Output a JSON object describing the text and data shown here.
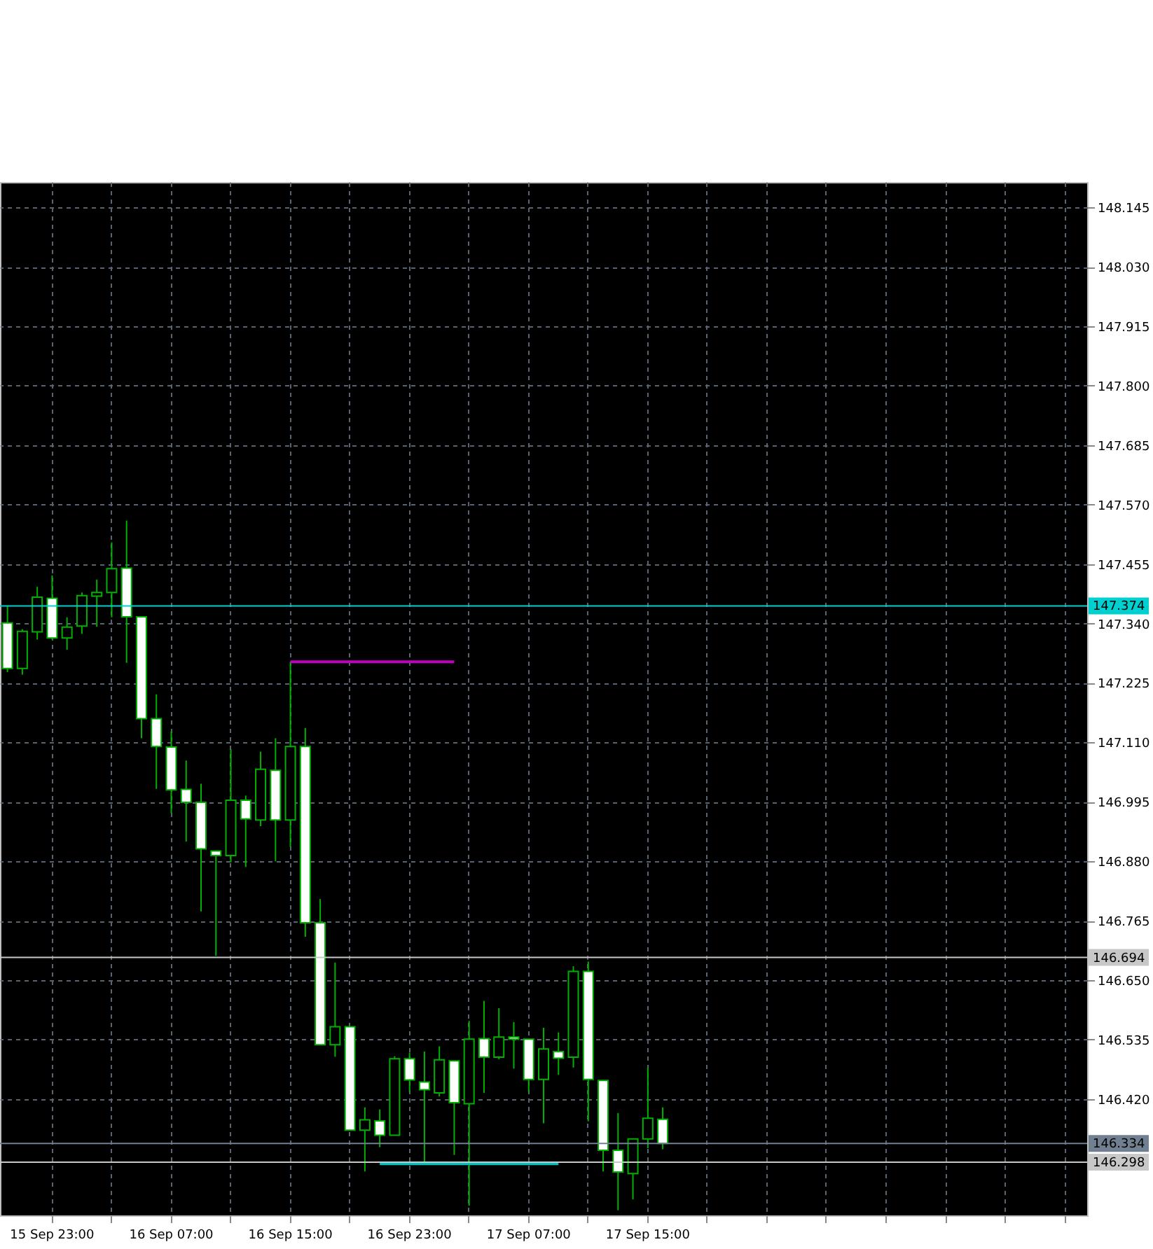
{
  "chart_data": {
    "type": "candlestick",
    "categories": [
      null,
      null,
      null,
      "15 Sep 23:00",
      null,
      null,
      null,
      null,
      null,
      null,
      null,
      "16 Sep 07:00",
      null,
      null,
      null,
      null,
      null,
      null,
      null,
      "16 Sep 15:00",
      null,
      null,
      null,
      null,
      null,
      null,
      null,
      "16 Sep 23:00",
      null,
      null,
      null,
      null,
      null,
      null,
      null,
      "17 Sep 07:00",
      null,
      null,
      null,
      null,
      null,
      null,
      null,
      "17 Sep 15:00",
      null,
      null,
      null,
      null,
      null,
      null,
      null,
      null,
      null,
      null,
      null,
      null,
      null,
      null,
      null,
      null,
      null,
      null,
      null,
      null,
      null,
      null,
      null,
      null,
      null,
      null,
      null,
      null,
      null
    ],
    "ohlc": [
      [
        147.341,
        147.374,
        147.246,
        147.253
      ],
      [
        147.253,
        147.329,
        147.241,
        147.325
      ],
      [
        147.324,
        147.411,
        147.309,
        147.391
      ],
      [
        147.389,
        147.433,
        147.309,
        147.312
      ],
      [
        147.312,
        147.352,
        147.289,
        147.333
      ],
      [
        147.335,
        147.4,
        147.32,
        147.394
      ],
      [
        147.393,
        147.425,
        147.334,
        147.4
      ],
      [
        147.4,
        147.497,
        147.352,
        147.446
      ],
      [
        147.447,
        147.539,
        147.264,
        147.353
      ],
      [
        147.353,
        147.353,
        147.118,
        147.156
      ],
      [
        147.156,
        147.203,
        147.02,
        147.102
      ],
      [
        147.101,
        147.131,
        146.973,
        147.018
      ],
      [
        147.019,
        147.075,
        146.918,
        146.994
      ],
      [
        146.994,
        147.03,
        146.783,
        146.904
      ],
      [
        146.9,
        146.9,
        146.697,
        146.891
      ],
      [
        146.891,
        147.097,
        146.878,
        146.998
      ],
      [
        146.998,
        147.007,
        146.869,
        146.962
      ],
      [
        146.96,
        147.092,
        146.948,
        147.058
      ],
      [
        147.056,
        147.118,
        146.88,
        146.96
      ],
      [
        146.96,
        147.266,
        146.908,
        147.102
      ],
      [
        147.102,
        147.138,
        146.734,
        146.761
      ],
      [
        146.761,
        146.807,
        146.525,
        146.525
      ],
      [
        146.525,
        146.684,
        146.502,
        146.56
      ],
      [
        146.56,
        146.56,
        146.36,
        146.36
      ],
      [
        146.36,
        146.404,
        146.28,
        146.38
      ],
      [
        146.378,
        146.4,
        146.327,
        146.35
      ],
      [
        146.35,
        146.503,
        146.35,
        146.498
      ],
      [
        146.498,
        146.51,
        146.434,
        146.457
      ],
      [
        146.453,
        146.512,
        146.296,
        146.438
      ],
      [
        146.432,
        146.522,
        146.425,
        146.496
      ],
      [
        146.494,
        146.494,
        146.312,
        146.413
      ],
      [
        146.411,
        146.571,
        146.214,
        146.536
      ],
      [
        146.537,
        146.61,
        146.432,
        146.501
      ],
      [
        146.501,
        146.596,
        146.497,
        146.54
      ],
      [
        146.54,
        146.569,
        146.479,
        146.536
      ],
      [
        146.536,
        146.536,
        146.434,
        146.458
      ],
      [
        146.458,
        146.558,
        146.373,
        146.517
      ],
      [
        146.512,
        146.549,
        146.467,
        146.499
      ],
      [
        146.501,
        146.677,
        146.481,
        146.667
      ],
      [
        146.667,
        146.686,
        146.377,
        146.458
      ],
      [
        146.456,
        146.456,
        146.28,
        146.321
      ],
      [
        146.321,
        146.393,
        146.205,
        146.279
      ],
      [
        146.276,
        146.343,
        146.226,
        146.343
      ],
      [
        146.343,
        146.481,
        146.325,
        146.383
      ],
      [
        146.381,
        146.404,
        146.323,
        146.334
      ],
      null,
      null,
      null,
      null,
      null,
      null,
      null,
      null,
      null,
      null,
      null,
      null,
      null,
      null,
      null,
      null,
      null,
      null,
      null,
      null,
      null,
      null,
      null,
      null,
      null,
      null,
      null,
      null
    ],
    "series": [
      {
        "type": "line",
        "color": "#c000c0",
        "values": [
          null,
          null,
          null,
          null,
          null,
          null,
          null,
          null,
          null,
          null,
          null,
          null,
          null,
          null,
          null,
          null,
          null,
          null,
          null,
          147.266,
          147.266,
          147.266,
          147.266,
          147.266,
          147.266,
          147.266,
          147.266,
          147.266,
          147.266,
          147.266,
          147.266,
          null,
          null,
          null,
          null,
          null,
          null,
          null,
          null,
          null,
          null,
          null,
          null,
          null,
          null,
          null,
          null,
          null,
          null,
          null,
          null,
          null,
          null,
          null,
          null,
          null,
          null,
          null,
          null,
          null,
          null,
          null,
          null,
          null,
          null,
          null,
          null,
          null,
          null,
          null,
          null,
          null,
          null
        ]
      },
      {
        "type": "line",
        "color": "#00c0c0",
        "values": [
          null,
          null,
          null,
          null,
          null,
          null,
          null,
          null,
          null,
          null,
          null,
          null,
          null,
          null,
          null,
          null,
          null,
          null,
          null,
          null,
          null,
          null,
          null,
          null,
          null,
          146.295,
          146.295,
          146.295,
          146.295,
          146.295,
          146.295,
          146.295,
          146.295,
          146.295,
          146.295,
          146.295,
          146.295,
          146.295,
          null,
          null,
          null,
          null,
          null,
          null,
          null,
          null,
          null,
          null,
          null,
          null,
          null,
          null,
          null,
          null,
          null,
          null,
          null,
          null,
          null,
          null,
          null,
          null,
          null,
          null,
          null,
          null,
          null,
          null,
          null,
          null,
          null,
          null,
          null
        ]
      }
    ],
    "ylim": [
      146.195,
      148.194
    ],
    "yticks": [
      148.145,
      {
        "value": 148.03,
        "label": "148.030"
      },
      147.915,
      {
        "value": 147.8,
        "label": "147.800"
      },
      147.685,
      {
        "value": 147.57,
        "label": "147.570"
      },
      147.455,
      {
        "value": 147.34,
        "label": "147.340"
      },
      147.225,
      {
        "value": 147.11,
        "label": "147.110"
      },
      146.995,
      {
        "value": 146.88,
        "label": "146.880"
      },
      146.765,
      {
        "value": 146.65,
        "label": "146.650"
      },
      146.535,
      {
        "value": 146.42,
        "label": "146.420"
      }
    ],
    "ref_lines": [
      {
        "axis": "y",
        "value": 147.374,
        "label": "147.374",
        "color": "#00d0d0"
      },
      {
        "axis": "y",
        "value": 146.694,
        "label": "146.694",
        "color": "#c8c8c8"
      },
      {
        "axis": "y",
        "value": 146.334,
        "label": "146.334",
        "color": "#708090"
      },
      {
        "axis": "y",
        "value": 146.298,
        "label": "146.298",
        "color": "#c8c8c8"
      }
    ],
    "grid": true
  }
}
